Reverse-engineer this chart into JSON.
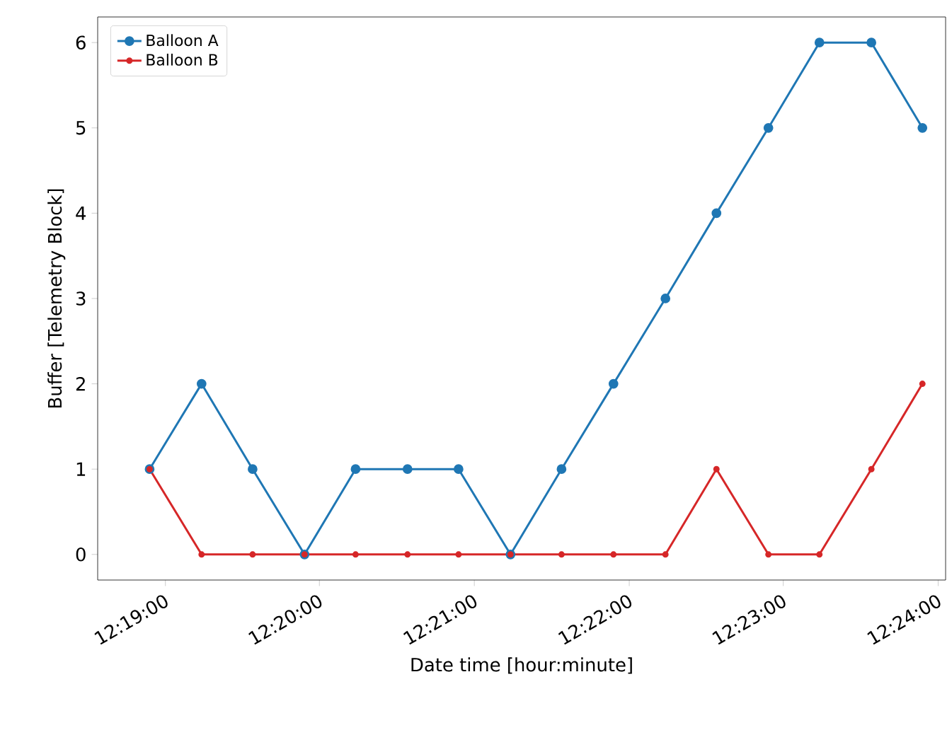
{
  "chart_data": {
    "type": "line",
    "xlabel": "Date time [hour:minute]",
    "ylabel": "Buffer [Telemetry Block]",
    "x": [
      12.315,
      12.3206,
      12.3261,
      12.3317,
      12.3372,
      12.3428,
      12.3483,
      12.3539,
      12.3594,
      12.365,
      12.3706,
      12.3761,
      12.3817,
      12.3872,
      12.3928,
      12.3983
    ],
    "series": [
      {
        "name": "Balloon A",
        "color": "#1f77b4",
        "values": [
          1,
          2,
          1,
          0,
          1,
          1,
          1,
          0,
          1,
          2,
          3,
          4,
          5,
          6,
          6,
          5
        ]
      },
      {
        "name": "Balloon B",
        "color": "#d62728",
        "values": [
          1,
          0,
          0,
          0,
          0,
          0,
          0,
          0,
          0,
          0,
          0,
          1,
          0,
          0,
          1,
          2
        ]
      }
    ],
    "xlim": [
      12.3094,
      12.4008
    ],
    "xticks": [
      {
        "value": 12.3167,
        "label": "12:19:00"
      },
      {
        "value": 12.3333,
        "label": "12:20:00"
      },
      {
        "value": 12.35,
        "label": "12:21:00"
      },
      {
        "value": 12.3667,
        "label": "12:22:00"
      },
      {
        "value": 12.3833,
        "label": "12:23:00"
      },
      {
        "value": 12.4,
        "label": "12:24:00"
      }
    ],
    "ylim": [
      -0.3,
      6.3
    ],
    "yticks": [
      0,
      1,
      2,
      3,
      4,
      5,
      6
    ],
    "legend": "top left",
    "marker": "circle",
    "line_style": "solid",
    "grid": false
  }
}
